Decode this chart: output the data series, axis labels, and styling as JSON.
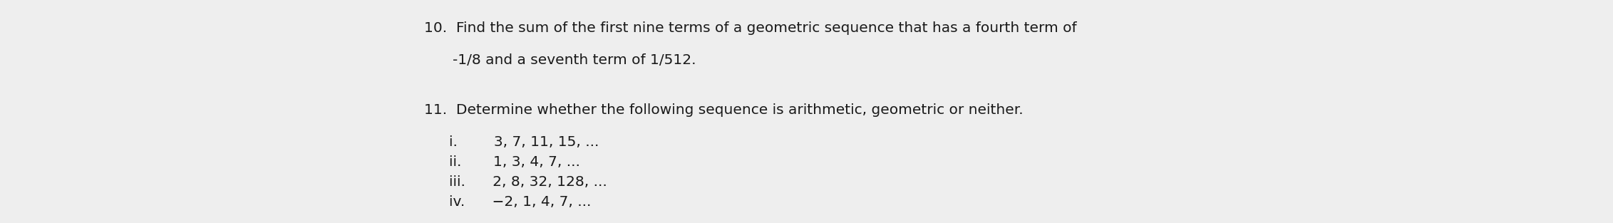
{
  "background_color": "#eeeeee",
  "text_color": "#1a1a1a",
  "font_size": 14.5,
  "fig_width": 22.63,
  "fig_height": 3.13,
  "dpi": 100,
  "lines": [
    {
      "xpx": 595,
      "ypx": 30,
      "text": "10.  Find the sum of the first nine terms of a geometric sequence that has a fourth term of"
    },
    {
      "xpx": 635,
      "ypx": 75,
      "text": "-1/8 and a seventh term of 1/512."
    },
    {
      "xpx": 595,
      "ypx": 145,
      "text": "11.  Determine whether the following sequence is arithmetic, geometric or neither."
    },
    {
      "xpx": 630,
      "ypx": 190,
      "text": "i.        3, 7, 11, 15, ..."
    },
    {
      "xpx": 630,
      "ypx": 218,
      "text": "ii.       1, 3, 4, 7, ..."
    },
    {
      "xpx": 630,
      "ypx": 246,
      "text": "iii.      2, 8, 32, 128, ..."
    },
    {
      "xpx": 630,
      "ypx": 274,
      "text": "iv.      −2, 1, 4, 7, ..."
    }
  ]
}
